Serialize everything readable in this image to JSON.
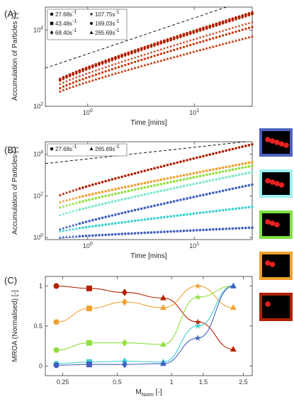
{
  "chart_data": [
    {
      "panel": "(A)",
      "type": "scatter",
      "xscale": "log",
      "yscale": "log",
      "xlabel": "Time [mins]",
      "ylabel": "Accumulation of Particles [-]",
      "xlim": [
        0.4,
        35
      ],
      "ylim": [
        100,
        40000
      ],
      "xticks": [
        {
          "v": 1,
          "t": "10^0"
        },
        {
          "v": 10,
          "t": "10^1"
        }
      ],
      "yticks": [
        {
          "v": 100,
          "t": "10^2"
        },
        {
          "v": 10000,
          "t": "10^4"
        }
      ],
      "legend": {
        "position": "top-left",
        "entries": [
          {
            "marker": "circle",
            "label": "27.68s^-1"
          },
          {
            "marker": "star",
            "label": "107.75s^-1"
          },
          {
            "marker": "square",
            "label": "43.48s^-1"
          },
          {
            "marker": "hexagon",
            "label": "169.03s^-1"
          },
          {
            "marker": "diamond",
            "label": "68.40s^-1"
          },
          {
            "marker": "triangle",
            "label": "265.69s^-1"
          }
        ]
      },
      "reference_line": {
        "style": "dashed",
        "x": [
          0.4,
          20
        ],
        "y": [
          1000,
          52000
        ]
      },
      "series": [
        {
          "name": "27.68s^-1",
          "marker": "circle",
          "color": "#b22000",
          "y0": 520,
          "y1": 29000
        },
        {
          "name": "43.48s^-1",
          "marker": "square",
          "color": "#b22000",
          "y0": 500,
          "y1": 27000
        },
        {
          "name": "68.40s^-1",
          "marker": "diamond",
          "color": "#b22000",
          "y0": 470,
          "y1": 26000
        },
        {
          "name": "107.75s^-1",
          "marker": "star",
          "color": "#c02800",
          "y0": 380,
          "y1": 16000
        },
        {
          "name": "169.03s^-1",
          "marker": "hexagon",
          "color": "#c83000",
          "y0": 300,
          "y1": 12000
        },
        {
          "name": "265.69s^-1",
          "marker": "triangle",
          "color": "#c83000",
          "y0": 245,
          "y1": 6800
        }
      ],
      "x_start": 0.55,
      "x_end": 35
    },
    {
      "panel": "(B)",
      "type": "scatter",
      "xscale": "log",
      "yscale": "log",
      "xlabel": "Time [mins]",
      "ylabel": "Accumulation of Particles [-]",
      "xlim": [
        0.4,
        35
      ],
      "ylim": [
        0.8,
        40000
      ],
      "xticks": [
        {
          "v": 1,
          "t": "10^0"
        },
        {
          "v": 10,
          "t": "10^1"
        }
      ],
      "yticks": [
        {
          "v": 1,
          "t": "10^0"
        },
        {
          "v": 100,
          "t": "10^2"
        },
        {
          "v": 10000,
          "t": "10^4"
        }
      ],
      "legend": {
        "position": "top-left",
        "entries": [
          {
            "marker": "circle",
            "label": "27.68s^-1"
          },
          {
            "marker": "triangle",
            "label": "265.69s^-1"
          }
        ]
      },
      "reference_line": {
        "style": "dashed",
        "x": [
          0.4,
          30
        ],
        "y": [
          3600,
          40000
        ]
      },
      "series": [
        {
          "name": "red",
          "color": "#b22000",
          "y0": 110,
          "y1": 30000
        },
        {
          "name": "orange",
          "color": "#f0a030",
          "y0": 50,
          "y1": 4200
        },
        {
          "name": "green",
          "color": "#90e040",
          "y0": 28,
          "y1": 2800
        },
        {
          "name": "light-cyan",
          "color": "#80e8d0",
          "y0": 12,
          "y1": 1400
        },
        {
          "name": "blue",
          "color": "#4060c0",
          "y0": 2.5,
          "y1": 350
        },
        {
          "name": "cyan",
          "color": "#40d0d0",
          "y0": 2,
          "y1": 30
        },
        {
          "name": "floor",
          "color": "#4060c0",
          "y0": 1,
          "y1": 3
        }
      ],
      "x_start": 0.55,
      "x_end": 35
    },
    {
      "panel": "(C)",
      "type": "line",
      "xscale": "log",
      "xlabel": "M_Norm [-]",
      "ylabel": "MROA (Normalised) [-]",
      "xlim": [
        0.2,
        2.8
      ],
      "ylim": [
        -0.12,
        1.12
      ],
      "xticks": [
        {
          "v": 0.25,
          "t": "0.25"
        },
        {
          "v": 0.5,
          "t": "0.5"
        },
        {
          "v": 1,
          "t": "1"
        },
        {
          "v": 1.5,
          "t": "1.5"
        },
        {
          "v": 2.5,
          "t": "2.5"
        }
      ],
      "yticks": [
        {
          "v": 0,
          "t": "0"
        },
        {
          "v": 0.5,
          "t": "0.5"
        },
        {
          "v": 1,
          "t": "1"
        }
      ],
      "x": [
        0.23,
        0.35,
        0.55,
        0.9,
        1.4,
        2.2
      ],
      "series": [
        {
          "color": "#b22000",
          "marker": "mixed",
          "values": [
            1.0,
            0.97,
            0.92,
            0.85,
            0.55,
            0.21
          ]
        },
        {
          "color": "#f0a030",
          "marker": "mixed",
          "values": [
            0.55,
            0.72,
            0.8,
            0.73,
            1.0,
            0.73
          ]
        },
        {
          "color": "#90e040",
          "marker": "mixed",
          "values": [
            0.2,
            0.29,
            0.29,
            0.27,
            0.86,
            1.0
          ]
        },
        {
          "color": "#40d0d0",
          "marker": "mixed",
          "values": [
            0.03,
            0.05,
            0.06,
            0.05,
            0.5,
            1.0
          ]
        },
        {
          "color": "#4060c0",
          "marker": "mixed",
          "values": [
            0.01,
            0.02,
            0.02,
            0.03,
            0.35,
            1.0
          ]
        }
      ]
    }
  ],
  "labels": {
    "a": "(A)",
    "b": "(B)",
    "c": "(C)"
  },
  "thumbnails": [
    {
      "border": "#5060c0",
      "dots": 5
    },
    {
      "border": "#a0f0f0",
      "dots": 4
    },
    {
      "border": "#80e040",
      "dots": 3
    },
    {
      "border": "#f0a030",
      "dots": 2
    },
    {
      "border": "#b22000",
      "dots": 1
    }
  ]
}
